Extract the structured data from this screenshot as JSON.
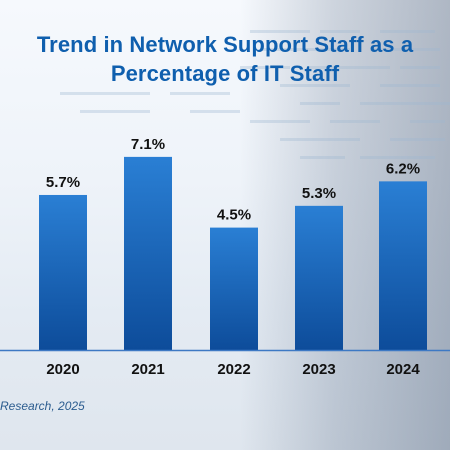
{
  "chart_data": {
    "type": "bar",
    "title": "Trend in Network Support Staff as a Percentage of IT Staff",
    "title_lines": [
      "Trend in Network Support Staff as a",
      "Percentage of IT Staff"
    ],
    "categories": [
      "2020",
      "2021",
      "2022",
      "2023",
      "2024"
    ],
    "values": [
      5.7,
      7.1,
      4.5,
      5.3,
      6.2
    ],
    "value_labels": [
      "5.7%",
      "7.1%",
      "4.5%",
      "5.3%",
      "6.2%"
    ],
    "ylim": [
      0,
      8
    ],
    "grid": false,
    "legend": "none",
    "bar_color_top": "#2a7fd4",
    "bar_color_bottom": "#0d4c9a"
  },
  "source": "Research, 2025",
  "colors": {
    "title": "#0f5fae",
    "axis": "#3d79c4",
    "text": "#111111"
  }
}
